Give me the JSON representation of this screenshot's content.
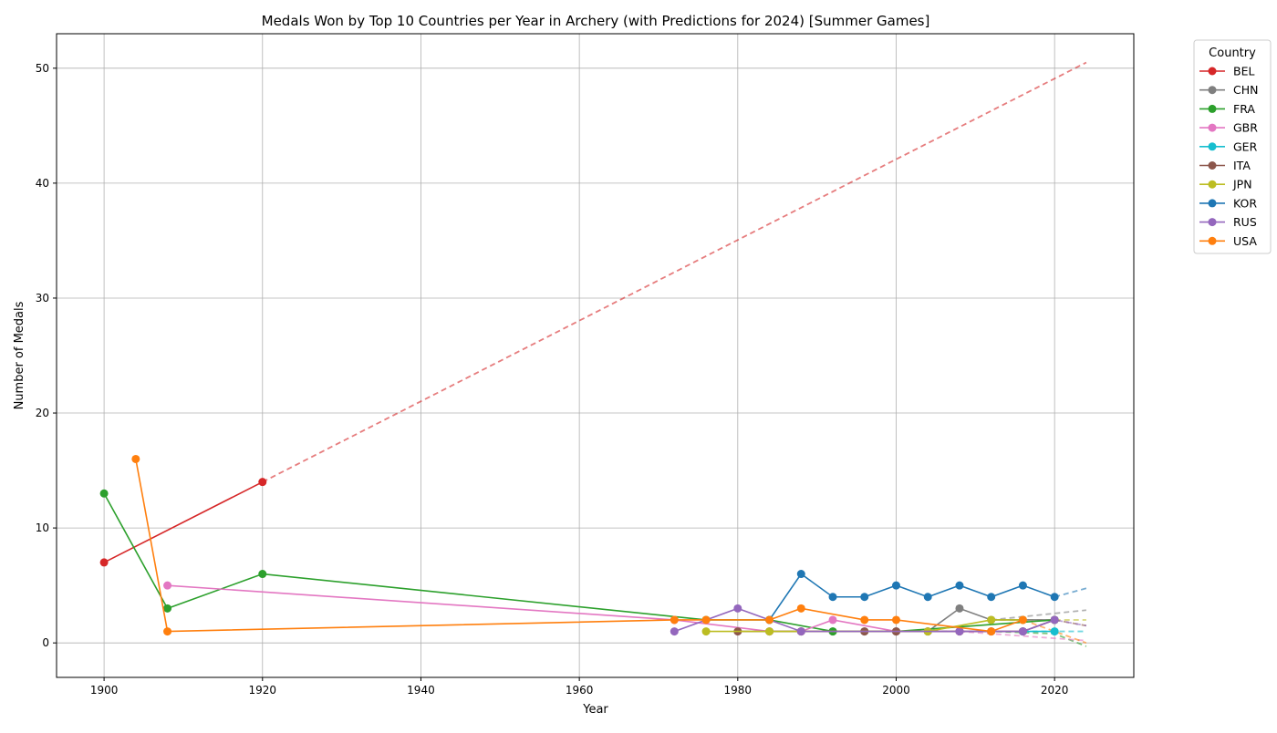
{
  "chart_data": {
    "type": "line",
    "title": "Medals Won by Top 10 Countries per Year in Archery (with Predictions for 2024) [Summer Games]",
    "xlabel": "Year",
    "ylabel": "Number of Medals",
    "xlim": [
      1894,
      2030
    ],
    "ylim": [
      -3,
      53
    ],
    "xticks": [
      1900,
      1920,
      1940,
      1960,
      1980,
      2000,
      2020
    ],
    "yticks": [
      0,
      10,
      20,
      30,
      40,
      50
    ],
    "grid": true,
    "legend_title": "Country",
    "legend_position": "outside-top-right",
    "series": [
      {
        "name": "BEL",
        "color": "#d62728",
        "points": [
          [
            1900,
            7
          ],
          [
            1920,
            14
          ]
        ],
        "prediction": [
          [
            1920,
            14
          ],
          [
            2024,
            50.5
          ]
        ]
      },
      {
        "name": "CHN",
        "color": "#7f7f7f",
        "points": [
          [
            1984,
            1
          ],
          [
            1988,
            1
          ],
          [
            1992,
            1
          ],
          [
            1996,
            1
          ],
          [
            2000,
            1
          ],
          [
            2004,
            1
          ],
          [
            2008,
            3
          ],
          [
            2012,
            2
          ],
          [
            2016,
            2
          ],
          [
            2020,
            2
          ]
        ],
        "prediction": [
          [
            2012,
            2
          ],
          [
            2024,
            2.85
          ]
        ]
      },
      {
        "name": "FRA",
        "color": "#2ca02c",
        "points": [
          [
            1900,
            13
          ],
          [
            1908,
            3
          ],
          [
            1920,
            6
          ],
          [
            1976,
            2
          ],
          [
            1984,
            2
          ],
          [
            1992,
            1
          ],
          [
            2000,
            1
          ],
          [
            2020,
            2
          ]
        ],
        "prediction": [
          [
            2000,
            1
          ],
          [
            2012,
            1
          ],
          [
            2020,
            0.8
          ],
          [
            2024,
            -0.3
          ]
        ]
      },
      {
        "name": "GBR",
        "color": "#e377c2",
        "points": [
          [
            1908,
            5
          ],
          [
            1972,
            2
          ],
          [
            1984,
            1
          ],
          [
            1988,
            1
          ],
          [
            1992,
            2
          ],
          [
            2000,
            1
          ],
          [
            2008,
            1
          ],
          [
            2012,
            1
          ],
          [
            2016,
            1
          ]
        ],
        "prediction": [
          [
            2008,
            1
          ],
          [
            2024,
            0.2
          ]
        ]
      },
      {
        "name": "GER",
        "color": "#17becf",
        "points": [
          [
            2016,
            1
          ],
          [
            2020,
            1
          ]
        ],
        "prediction": [
          [
            2016,
            1
          ],
          [
            2024,
            1
          ]
        ]
      },
      {
        "name": "ITA",
        "color": "#8c564b",
        "points": [
          [
            1980,
            1
          ],
          [
            1988,
            1
          ],
          [
            1996,
            1
          ],
          [
            2000,
            1
          ],
          [
            2004,
            1
          ],
          [
            2008,
            1
          ],
          [
            2012,
            1
          ],
          [
            2016,
            1
          ],
          [
            2020,
            2
          ]
        ],
        "prediction": [
          [
            2020,
            2
          ],
          [
            2024,
            1.5
          ]
        ]
      },
      {
        "name": "JPN",
        "color": "#bcbd22",
        "points": [
          [
            1976,
            1
          ],
          [
            1984,
            1
          ],
          [
            2004,
            1
          ],
          [
            2012,
            2
          ],
          [
            2016,
            2
          ]
        ],
        "prediction": [
          [
            2012,
            2
          ],
          [
            2024,
            2
          ]
        ]
      },
      {
        "name": "KOR",
        "color": "#1f77b4",
        "points": [
          [
            1984,
            2
          ],
          [
            1988,
            6
          ],
          [
            1992,
            4
          ],
          [
            1996,
            4
          ],
          [
            2000,
            5
          ],
          [
            2004,
            4
          ],
          [
            2008,
            5
          ],
          [
            2012,
            4
          ],
          [
            2016,
            5
          ],
          [
            2020,
            4
          ]
        ],
        "prediction": [
          [
            2020,
            4
          ],
          [
            2024,
            4.75
          ]
        ]
      },
      {
        "name": "RUS",
        "color": "#9467bd",
        "points": [
          [
            1972,
            1
          ],
          [
            1980,
            3
          ],
          [
            1988,
            1
          ],
          [
            2008,
            1
          ],
          [
            2016,
            1
          ],
          [
            2020,
            2
          ]
        ],
        "prediction": [
          [
            2016,
            1
          ],
          [
            2020,
            2
          ],
          [
            2024,
            1.5
          ]
        ]
      },
      {
        "name": "USA",
        "color": "#ff7f0e",
        "points": [
          [
            1904,
            16
          ],
          [
            1908,
            1
          ],
          [
            1972,
            2
          ],
          [
            1976,
            2
          ],
          [
            1984,
            2
          ],
          [
            1988,
            3
          ],
          [
            1996,
            2
          ],
          [
            2000,
            2
          ],
          [
            2012,
            1
          ],
          [
            2016,
            2
          ]
        ],
        "prediction": [
          [
            2016,
            2
          ],
          [
            2024,
            0
          ]
        ]
      }
    ]
  }
}
